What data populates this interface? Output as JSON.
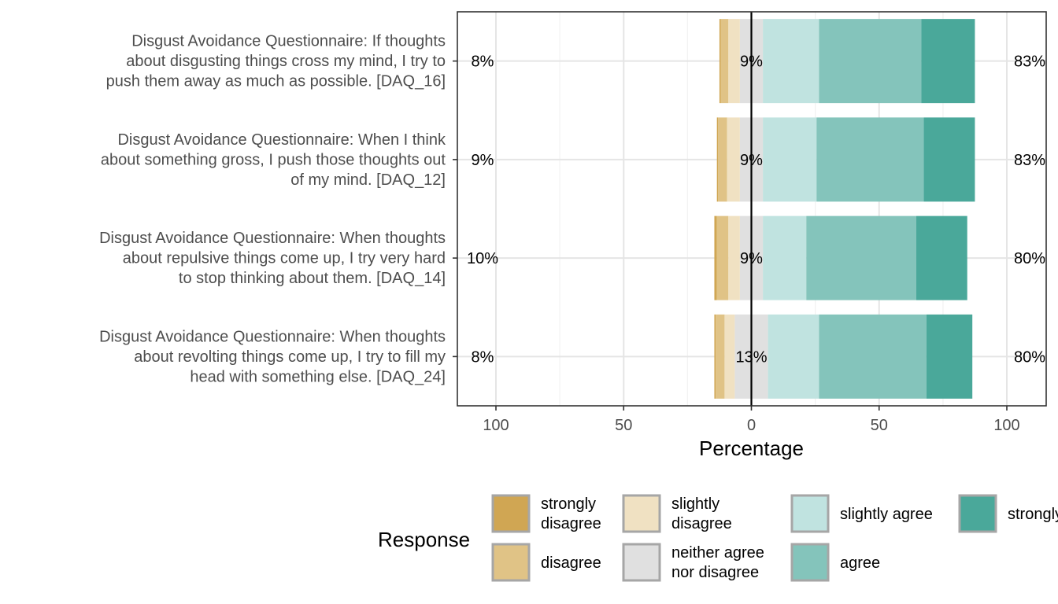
{
  "chart_data": {
    "type": "bar",
    "subtype": "diverging-stacked-likert",
    "xlabel": "Percentage",
    "x_ticks": [
      100,
      50,
      0,
      50,
      100
    ],
    "xlim": [
      -100,
      100
    ],
    "grid": true,
    "legend": {
      "title": "Response",
      "position": "bottom",
      "entries": [
        "strongly disagree",
        "disagree",
        "slightly disagree",
        "neither agree nor disagree",
        "slightly agree",
        "agree",
        "strongly agree"
      ]
    },
    "categories": [
      "Disgust Avoidance Questionnaire: If thoughts about disgusting things cross my mind, I try to push them away as much as possible. [DAQ_16]",
      "Disgust Avoidance Questionnaire: When I think about something gross, I push those thoughts out of my mind. [DAQ_12]",
      "Disgust Avoidance Questionnaire: When thoughts about repulsive things come up, I try very hard to stop thinking about them. [DAQ_14]",
      "Disgust Avoidance Questionnaire: When thoughts about revolting things come up, I try to fill my head with something else. [DAQ_24]"
    ],
    "series": [
      {
        "name": "strongly disagree",
        "color": "#D0A653",
        "values": [
          0.5,
          0.5,
          1,
          0.5
        ]
      },
      {
        "name": "disagree",
        "color": "#E0C386",
        "values": [
          3,
          3.5,
          4.5,
          3.5
        ]
      },
      {
        "name": "slightly disagree",
        "color": "#F0E1C2",
        "values": [
          4.5,
          5,
          4.5,
          4
        ]
      },
      {
        "name": "neither agree nor disagree",
        "color": "#E0E0E0",
        "values": [
          9,
          9,
          9,
          13
        ]
      },
      {
        "name": "slightly agree",
        "color": "#C0E3E0",
        "values": [
          22,
          21,
          17,
          20
        ]
      },
      {
        "name": "agree",
        "color": "#84C4BB",
        "values": [
          40,
          42,
          43,
          42
        ]
      },
      {
        "name": "strongly agree",
        "color": "#4AA89A",
        "values": [
          21,
          20,
          20,
          18
        ]
      }
    ],
    "left_labels": [
      "8%",
      "9%",
      "10%",
      "8%"
    ],
    "center_labels": [
      "9%",
      "9%",
      "9%",
      "13%"
    ],
    "right_labels": [
      "83%",
      "83%",
      "80%",
      "80%"
    ]
  },
  "item_lines": [
    [
      "Disgust Avoidance Questionnaire: If thoughts",
      "about disgusting things cross my mind, I try to",
      "push them away as much as possible. [DAQ_16]"
    ],
    [
      "Disgust Avoidance Questionnaire: When I think",
      "about something gross, I push those thoughts out",
      "of my mind. [DAQ_12]"
    ],
    [
      "Disgust Avoidance Questionnaire: When thoughts",
      "about repulsive things come up, I try very hard",
      "to stop thinking about them. [DAQ_14]"
    ],
    [
      "Disgust Avoidance Questionnaire: When thoughts",
      "about revolting things come up, I try to fill my",
      "head with something else. [DAQ_24]"
    ]
  ],
  "legend_lines": [
    [
      "strongly",
      "disagree"
    ],
    [
      "disagree"
    ],
    [
      "slightly",
      "disagree"
    ],
    [
      "neither agree",
      "nor disagree"
    ],
    [
      "slightly agree"
    ],
    [
      "agree"
    ],
    [
      "strongly agree"
    ]
  ]
}
